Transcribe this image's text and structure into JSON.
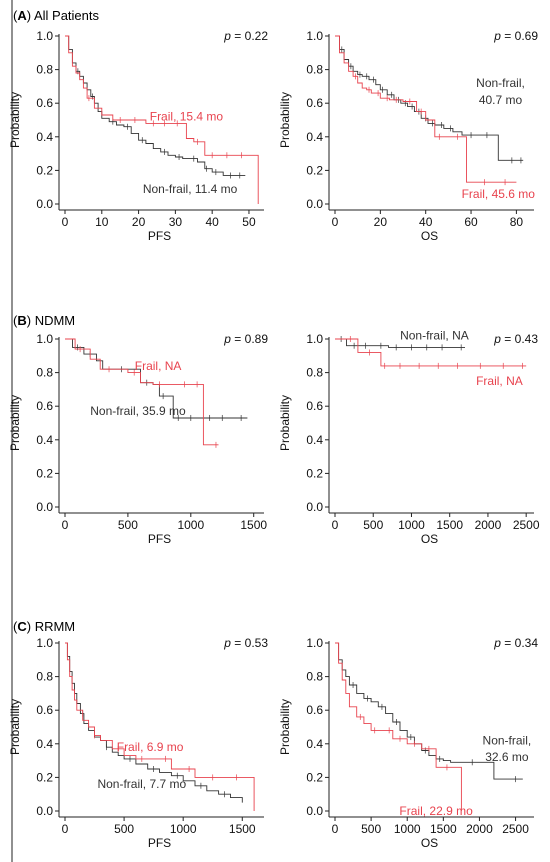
{
  "colors": {
    "frail": "#e8434e",
    "nonfrail": "#333333",
    "axis": "#222222"
  },
  "figure": {
    "panels": [
      {
        "label": "(A)",
        "label_bold": "A",
        "title": "All Patients"
      },
      {
        "label": "(B)",
        "label_bold": "B",
        "title": "NDMM"
      },
      {
        "label": "(C)",
        "label_bold": "C",
        "title": "RRMM"
      }
    ]
  },
  "chart_data": [
    {
      "id": "A_PFS",
      "type": "line",
      "row": 0,
      "col": 0,
      "xlabel": "PFS",
      "ylabel": "Probability",
      "xlim": [
        0,
        53
      ],
      "ylim": [
        0,
        1
      ],
      "xticks": [
        0,
        10,
        20,
        30,
        40,
        50
      ],
      "yticks": [
        0.0,
        0.2,
        0.4,
        0.6,
        0.8,
        1.0
      ],
      "p_prefix": "p",
      "p_value": "= 0.22",
      "series": [
        {
          "group": "nonfrail",
          "label": "Non-frail, 11.4 mo",
          "x": [
            0,
            1,
            2,
            3,
            4,
            5,
            6,
            7,
            8,
            9,
            10,
            12,
            14,
            16,
            18,
            20,
            22,
            24,
            26,
            28,
            30,
            32,
            34,
            36,
            38,
            40,
            43,
            46,
            49
          ],
          "y": [
            1.0,
            0.92,
            0.84,
            0.79,
            0.76,
            0.72,
            0.68,
            0.64,
            0.6,
            0.55,
            0.51,
            0.49,
            0.47,
            0.46,
            0.42,
            0.38,
            0.36,
            0.33,
            0.31,
            0.29,
            0.28,
            0.27,
            0.27,
            0.25,
            0.21,
            0.19,
            0.17,
            0.17,
            0.17
          ],
          "censor_x": [
            3.5,
            7.5,
            13,
            17,
            21,
            27,
            31,
            35,
            38.5,
            41,
            45,
            47.5
          ]
        },
        {
          "group": "frail",
          "label": "Frail, 15.4 mo",
          "x": [
            0,
            1,
            2,
            3,
            4,
            5,
            6,
            8,
            10,
            13,
            16,
            20,
            22,
            25,
            30,
            33,
            35,
            38,
            41,
            44,
            48,
            52,
            52.5
          ],
          "y": [
            1.0,
            0.9,
            0.82,
            0.78,
            0.74,
            0.69,
            0.63,
            0.57,
            0.53,
            0.5,
            0.5,
            0.5,
            0.48,
            0.48,
            0.48,
            0.39,
            0.37,
            0.29,
            0.29,
            0.29,
            0.29,
            0.29,
            0.0
          ],
          "censor_x": [
            6.5,
            15,
            19,
            24,
            27,
            30.5,
            36,
            40,
            44,
            48
          ]
        }
      ],
      "annotations": [
        {
          "group": "frail",
          "text": "Frail, 15.4 mo",
          "x": 33,
          "y": 0.52,
          "anchor": "middle"
        },
        {
          "group": "nonfrail",
          "text": "Non-frail, 11.4 mo",
          "x": 34,
          "y": 0.09,
          "anchor": "middle"
        }
      ]
    },
    {
      "id": "A_OS",
      "type": "line",
      "row": 0,
      "col": 1,
      "xlabel": "OS",
      "ylabel": "Probability",
      "xlim": [
        0,
        86
      ],
      "ylim": [
        0,
        1
      ],
      "xticks": [
        0,
        20,
        40,
        60,
        80
      ],
      "yticks": [
        0.0,
        0.2,
        0.4,
        0.6,
        0.8,
        1.0
      ],
      "p_prefix": "p",
      "p_value": "= 0.69",
      "series": [
        {
          "group": "nonfrail",
          "label": "Non-frail, 40.7 mo",
          "x": [
            0,
            2,
            4,
            6,
            8,
            10,
            12,
            15,
            18,
            20,
            23,
            26,
            29,
            32,
            35,
            38,
            41,
            44,
            48,
            52,
            56,
            62,
            68,
            72,
            76,
            83
          ],
          "y": [
            1.0,
            0.92,
            0.86,
            0.82,
            0.79,
            0.77,
            0.76,
            0.74,
            0.71,
            0.68,
            0.65,
            0.62,
            0.6,
            0.58,
            0.55,
            0.51,
            0.48,
            0.47,
            0.45,
            0.43,
            0.41,
            0.41,
            0.41,
            0.26,
            0.26,
            0.26
          ],
          "censor_x": [
            3,
            7,
            11,
            14,
            17,
            21,
            25,
            28,
            31,
            34,
            37,
            40,
            43,
            47,
            51,
            60,
            67,
            78,
            82
          ]
        },
        {
          "group": "frail",
          "label": "Frail, 45.6 mo",
          "x": [
            0,
            2,
            4,
            6,
            8,
            10,
            12,
            14,
            16,
            20,
            24,
            30,
            36,
            40,
            44,
            48,
            52,
            56,
            58,
            62,
            70,
            78,
            80
          ],
          "y": [
            1.0,
            0.9,
            0.84,
            0.79,
            0.76,
            0.72,
            0.69,
            0.68,
            0.66,
            0.63,
            0.62,
            0.61,
            0.55,
            0.5,
            0.4,
            0.4,
            0.4,
            0.4,
            0.13,
            0.13,
            0.13,
            0.13,
            0.13
          ],
          "censor_x": [
            9,
            15,
            19,
            23,
            27,
            33,
            38,
            46,
            54,
            66,
            75
          ]
        }
      ],
      "annotations": [
        {
          "group": "nonfrail",
          "text": "Non-frail,",
          "x": 73,
          "y": 0.72,
          "anchor": "middle"
        },
        {
          "group": "nonfrail",
          "text": "40.7 mo",
          "x": 73,
          "y": 0.62,
          "anchor": "middle"
        },
        {
          "group": "frail",
          "text": "Frail, 45.6 mo",
          "x": 72,
          "y": 0.06,
          "anchor": "middle"
        }
      ]
    },
    {
      "id": "B_PFS",
      "type": "line",
      "row": 1,
      "col": 0,
      "xlabel": "PFS",
      "ylabel": "Probability",
      "xlim": [
        0,
        1550
      ],
      "ylim": [
        0,
        1
      ],
      "xticks": [
        0,
        500,
        1000,
        1500
      ],
      "yticks": [
        0.0,
        0.2,
        0.4,
        0.6,
        0.8,
        1.0
      ],
      "p_prefix": "p",
      "p_value": "= 0.89",
      "series": [
        {
          "group": "nonfrail",
          "label": "Non-frail, 35.9 mo",
          "x": [
            0,
            60,
            150,
            250,
            300,
            400,
            500,
            600,
            700,
            750,
            800,
            860,
            950,
            1100,
            1300,
            1450
          ],
          "y": [
            1.0,
            0.95,
            0.91,
            0.87,
            0.82,
            0.82,
            0.82,
            0.74,
            0.73,
            0.66,
            0.66,
            0.53,
            0.53,
            0.53,
            0.53,
            0.53
          ],
          "censor_x": [
            100,
            200,
            450,
            650,
            780,
            900,
            1000,
            1150,
            1250,
            1400
          ]
        },
        {
          "group": "frail",
          "label": "Frail, NA",
          "x": [
            0,
            80,
            200,
            280,
            300,
            400,
            500,
            600,
            700,
            800,
            900,
            1000,
            1100,
            1150,
            1220
          ],
          "y": [
            1.0,
            0.94,
            0.88,
            0.82,
            0.82,
            0.82,
            0.8,
            0.74,
            0.73,
            0.73,
            0.73,
            0.73,
            0.37,
            0.37,
            0.37
          ],
          "censor_x": [
            120,
            350,
            550,
            750,
            950,
            1050,
            1200
          ]
        }
      ],
      "annotations": [
        {
          "group": "frail",
          "text": "Frail, NA",
          "x": 740,
          "y": 0.84,
          "anchor": "middle"
        },
        {
          "group": "nonfrail",
          "text": "Non-frail, 35.9 mo",
          "x": 580,
          "y": 0.57,
          "anchor": "middle"
        }
      ]
    },
    {
      "id": "B_OS",
      "type": "line",
      "row": 1,
      "col": 1,
      "xlabel": "OS",
      "ylabel": "Probability",
      "xlim": [
        0,
        2550
      ],
      "ylim": [
        0,
        1
      ],
      "xticks": [
        0,
        500,
        1000,
        1500,
        2000,
        2500
      ],
      "yticks": [
        0.0,
        0.2,
        0.4,
        0.6,
        0.8,
        1.0
      ],
      "p_prefix": "p",
      "p_value": "= 0.43",
      "series": [
        {
          "group": "nonfrail",
          "label": "Non-frail, NA",
          "x": [
            0,
            150,
            300,
            500,
            700,
            900,
            1100,
            1300,
            1500,
            1700
          ],
          "y": [
            1.0,
            0.96,
            0.96,
            0.96,
            0.95,
            0.95,
            0.95,
            0.95,
            0.95,
            0.95
          ],
          "censor_x": [
            80,
            250,
            400,
            600,
            800,
            1000,
            1200,
            1400,
            1650
          ]
        },
        {
          "group": "frail",
          "label": "Frail, NA",
          "x": [
            0,
            300,
            600,
            700,
            900,
            1200,
            1500,
            1800,
            2100,
            2400,
            2500
          ],
          "y": [
            1.0,
            0.92,
            0.84,
            0.84,
            0.84,
            0.84,
            0.84,
            0.84,
            0.84,
            0.84,
            0.84
          ],
          "censor_x": [
            200,
            450,
            650,
            850,
            1100,
            1350,
            1600,
            1900,
            2200,
            2450
          ]
        }
      ],
      "annotations": [
        {
          "group": "nonfrail",
          "text": "Non-frail, NA",
          "x": 1300,
          "y": 1.02,
          "anchor": "middle"
        },
        {
          "group": "frail",
          "text": "Frail, NA",
          "x": 2150,
          "y": 0.75,
          "anchor": "middle"
        }
      ]
    },
    {
      "id": "C_PFS",
      "type": "line",
      "row": 2,
      "col": 0,
      "xlabel": "PFS",
      "ylabel": "Probability",
      "xlim": [
        0,
        1650
      ],
      "ylim": [
        0,
        1
      ],
      "xticks": [
        0,
        500,
        1000,
        1500
      ],
      "yticks": [
        0.0,
        0.2,
        0.4,
        0.6,
        0.8,
        1.0
      ],
      "p_prefix": "p",
      "p_value": "= 0.53",
      "series": [
        {
          "group": "nonfrail",
          "label": "Non-frail, 7.7 mo",
          "x": [
            0,
            20,
            40,
            60,
            80,
            100,
            130,
            160,
            200,
            250,
            300,
            350,
            400,
            450,
            500,
            600,
            700,
            800,
            900,
            1000,
            1100,
            1200,
            1300,
            1400,
            1500
          ],
          "y": [
            1.0,
            0.92,
            0.83,
            0.76,
            0.7,
            0.64,
            0.58,
            0.52,
            0.48,
            0.44,
            0.42,
            0.38,
            0.35,
            0.33,
            0.31,
            0.28,
            0.25,
            0.23,
            0.21,
            0.18,
            0.15,
            0.12,
            0.1,
            0.08,
            0.05
          ],
          "censor_x": [
            150,
            350,
            550,
            750,
            950,
            1150,
            1350
          ]
        },
        {
          "group": "frail",
          "label": "Frail, 6.9 mo",
          "x": [
            0,
            20,
            40,
            60,
            80,
            100,
            150,
            200,
            250,
            300,
            400,
            500,
            600,
            700,
            800,
            900,
            1000,
            1100,
            1200,
            1300,
            1400,
            1550,
            1600
          ],
          "y": [
            1.0,
            0.9,
            0.8,
            0.72,
            0.66,
            0.6,
            0.54,
            0.5,
            0.45,
            0.42,
            0.37,
            0.33,
            0.31,
            0.31,
            0.31,
            0.25,
            0.25,
            0.2,
            0.2,
            0.2,
            0.2,
            0.2,
            0.0
          ],
          "censor_x": [
            250,
            450,
            650,
            850,
            1050,
            1250,
            1450
          ]
        }
      ],
      "annotations": [
        {
          "group": "frail",
          "text": "Frail, 6.9 mo",
          "x": 720,
          "y": 0.38,
          "anchor": "middle"
        },
        {
          "group": "nonfrail",
          "text": "Non-frail, 7.7 mo",
          "x": 650,
          "y": 0.16,
          "anchor": "middle"
        }
      ]
    },
    {
      "id": "C_OS",
      "type": "line",
      "row": 2,
      "col": 1,
      "xlabel": "OS",
      "ylabel": "Probability",
      "xlim": [
        0,
        2700
      ],
      "ylim": [
        0,
        1
      ],
      "xticks": [
        0,
        500,
        1000,
        1500,
        2000,
        2500
      ],
      "yticks": [
        0.0,
        0.2,
        0.4,
        0.6,
        0.8,
        1.0
      ],
      "p_prefix": "p",
      "p_value": "= 0.34",
      "series": [
        {
          "group": "nonfrail",
          "label": "Non-frail, 32.6 mo",
          "x": [
            0,
            50,
            100,
            150,
            200,
            300,
            400,
            500,
            600,
            700,
            800,
            900,
            1000,
            1100,
            1200,
            1300,
            1400,
            1500,
            1600,
            1800,
            2000,
            2200,
            2400,
            2600
          ],
          "y": [
            1.0,
            0.9,
            0.84,
            0.8,
            0.75,
            0.7,
            0.67,
            0.65,
            0.62,
            0.58,
            0.53,
            0.48,
            0.44,
            0.4,
            0.36,
            0.33,
            0.31,
            0.3,
            0.29,
            0.29,
            0.29,
            0.19,
            0.19,
            0.19
          ],
          "censor_x": [
            250,
            450,
            650,
            850,
            1050,
            1250,
            1450,
            1900,
            2500
          ]
        },
        {
          "group": "frail",
          "label": "Frail, 22.9 mo",
          "x": [
            0,
            50,
            100,
            150,
            200,
            300,
            400,
            500,
            600,
            700,
            800,
            1000,
            1200,
            1400,
            1700,
            1750
          ],
          "y": [
            1.0,
            0.88,
            0.78,
            0.7,
            0.62,
            0.56,
            0.52,
            0.48,
            0.48,
            0.48,
            0.43,
            0.4,
            0.37,
            0.26,
            0.26,
            0.0
          ],
          "censor_x": [
            350,
            550,
            750,
            900,
            1100,
            1300,
            1550
          ]
        }
      ],
      "annotations": [
        {
          "group": "nonfrail",
          "text": "Non-frail,",
          "x": 2380,
          "y": 0.42,
          "anchor": "middle"
        },
        {
          "group": "nonfrail",
          "text": "32.6 mo",
          "x": 2380,
          "y": 0.32,
          "anchor": "middle"
        },
        {
          "group": "frail",
          "text": "Frail, 22.9 mo",
          "x": 1400,
          "y": 0.0,
          "anchor": "middle"
        }
      ]
    }
  ]
}
